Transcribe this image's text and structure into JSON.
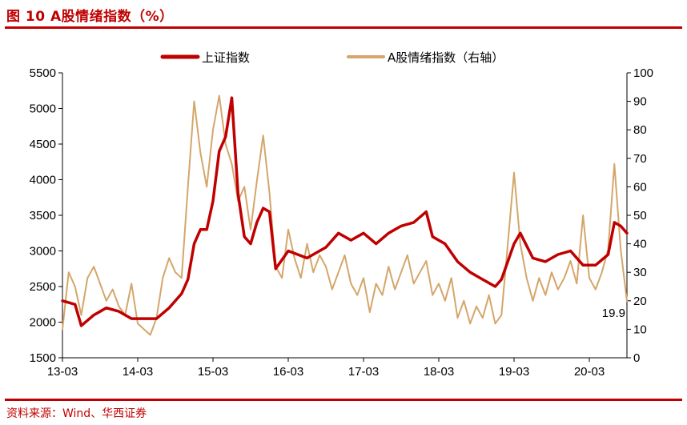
{
  "figure": {
    "title": "图 10  A股情绪指数（%）",
    "source": "资料来源：Wind、华西证券"
  },
  "colors": {
    "sse": "#c00000",
    "sentiment": "#d4a66a",
    "title": "#c00000",
    "axis": "#000000"
  },
  "chart_data": {
    "type": "line",
    "x_tick_labels": [
      "13-03",
      "14-03",
      "15-03",
      "16-03",
      "17-03",
      "18-03",
      "19-03",
      "20-03"
    ],
    "y_left_ticks": [
      1500,
      2000,
      2500,
      3000,
      3500,
      4000,
      4500,
      5000,
      5500
    ],
    "y_right_ticks": [
      0,
      10,
      20,
      30,
      40,
      50,
      60,
      70,
      80,
      90,
      100
    ],
    "ylim_left": [
      1500,
      5500
    ],
    "ylim_right": [
      0,
      100
    ],
    "legend_position": "top-center",
    "grid": false,
    "annotation": "19.9",
    "series": [
      {
        "name": "上证指数",
        "axis": "left",
        "points": [
          [
            "2013-03",
            2300
          ],
          [
            "2013-05",
            2250
          ],
          [
            "2013-06",
            1950
          ],
          [
            "2013-08",
            2100
          ],
          [
            "2013-10",
            2200
          ],
          [
            "2013-12",
            2150
          ],
          [
            "2014-02",
            2050
          ],
          [
            "2014-04",
            2050
          ],
          [
            "2014-06",
            2050
          ],
          [
            "2014-08",
            2200
          ],
          [
            "2014-10",
            2400
          ],
          [
            "2014-11",
            2600
          ],
          [
            "2014-12",
            3100
          ],
          [
            "2015-01",
            3300
          ],
          [
            "2015-02",
            3300
          ],
          [
            "2015-03",
            3700
          ],
          [
            "2015-04",
            4400
          ],
          [
            "2015-05",
            4600
          ],
          [
            "2015-06",
            5150
          ],
          [
            "2015-07",
            3800
          ],
          [
            "2015-08",
            3200
          ],
          [
            "2015-09",
            3100
          ],
          [
            "2015-10",
            3400
          ],
          [
            "2015-11",
            3600
          ],
          [
            "2015-12",
            3550
          ],
          [
            "2016-01",
            2750
          ],
          [
            "2016-03",
            3000
          ],
          [
            "2016-06",
            2900
          ],
          [
            "2016-09",
            3050
          ],
          [
            "2016-11",
            3250
          ],
          [
            "2017-01",
            3150
          ],
          [
            "2017-03",
            3250
          ],
          [
            "2017-05",
            3100
          ],
          [
            "2017-07",
            3250
          ],
          [
            "2017-09",
            3350
          ],
          [
            "2017-11",
            3400
          ],
          [
            "2018-01",
            3550
          ],
          [
            "2018-02",
            3200
          ],
          [
            "2018-04",
            3100
          ],
          [
            "2018-06",
            2850
          ],
          [
            "2018-08",
            2700
          ],
          [
            "2018-10",
            2600
          ],
          [
            "2018-12",
            2500
          ],
          [
            "2019-01",
            2600
          ],
          [
            "2019-03",
            3100
          ],
          [
            "2019-04",
            3250
          ],
          [
            "2019-06",
            2900
          ],
          [
            "2019-08",
            2850
          ],
          [
            "2019-10",
            2950
          ],
          [
            "2019-12",
            3000
          ],
          [
            "2020-02",
            2800
          ],
          [
            "2020-04",
            2800
          ],
          [
            "2020-06",
            2950
          ],
          [
            "2020-07",
            3400
          ],
          [
            "2020-08",
            3350
          ],
          [
            "2020-09",
            3250
          ]
        ]
      },
      {
        "name": "A股情绪指数（右轴）",
        "axis": "right",
        "points": [
          [
            "2013-03",
            10
          ],
          [
            "2013-04",
            30
          ],
          [
            "2013-05",
            25
          ],
          [
            "2013-06",
            15
          ],
          [
            "2013-07",
            28
          ],
          [
            "2013-08",
            32
          ],
          [
            "2013-09",
            26
          ],
          [
            "2013-10",
            20
          ],
          [
            "2013-11",
            24
          ],
          [
            "2013-12",
            18
          ],
          [
            "2014-01",
            15
          ],
          [
            "2014-02",
            26
          ],
          [
            "2014-03",
            12
          ],
          [
            "2014-04",
            10
          ],
          [
            "2014-05",
            8
          ],
          [
            "2014-06",
            14
          ],
          [
            "2014-07",
            28
          ],
          [
            "2014-08",
            35
          ],
          [
            "2014-09",
            30
          ],
          [
            "2014-10",
            28
          ],
          [
            "2014-11",
            60
          ],
          [
            "2014-12",
            90
          ],
          [
            "2015-01",
            72
          ],
          [
            "2015-02",
            60
          ],
          [
            "2015-03",
            80
          ],
          [
            "2015-04",
            92
          ],
          [
            "2015-05",
            75
          ],
          [
            "2015-06",
            68
          ],
          [
            "2015-07",
            55
          ],
          [
            "2015-08",
            60
          ],
          [
            "2015-09",
            45
          ],
          [
            "2015-10",
            62
          ],
          [
            "2015-11",
            78
          ],
          [
            "2015-12",
            58
          ],
          [
            "2016-01",
            32
          ],
          [
            "2016-02",
            28
          ],
          [
            "2016-03",
            45
          ],
          [
            "2016-04",
            35
          ],
          [
            "2016-05",
            28
          ],
          [
            "2016-06",
            40
          ],
          [
            "2016-07",
            30
          ],
          [
            "2016-08",
            36
          ],
          [
            "2016-09",
            32
          ],
          [
            "2016-10",
            24
          ],
          [
            "2016-11",
            30
          ],
          [
            "2016-12",
            36
          ],
          [
            "2017-01",
            26
          ],
          [
            "2017-02",
            22
          ],
          [
            "2017-03",
            28
          ],
          [
            "2017-04",
            16
          ],
          [
            "2017-05",
            26
          ],
          [
            "2017-06",
            22
          ],
          [
            "2017-07",
            32
          ],
          [
            "2017-08",
            24
          ],
          [
            "2017-09",
            30
          ],
          [
            "2017-10",
            36
          ],
          [
            "2017-11",
            26
          ],
          [
            "2017-12",
            30
          ],
          [
            "2018-01",
            34
          ],
          [
            "2018-02",
            22
          ],
          [
            "2018-03",
            26
          ],
          [
            "2018-04",
            20
          ],
          [
            "2018-05",
            28
          ],
          [
            "2018-06",
            14
          ],
          [
            "2018-07",
            20
          ],
          [
            "2018-08",
            12
          ],
          [
            "2018-09",
            18
          ],
          [
            "2018-10",
            14
          ],
          [
            "2018-11",
            22
          ],
          [
            "2018-12",
            12
          ],
          [
            "2019-01",
            15
          ],
          [
            "2019-02",
            40
          ],
          [
            "2019-03",
            65
          ],
          [
            "2019-04",
            40
          ],
          [
            "2019-05",
            28
          ],
          [
            "2019-06",
            20
          ],
          [
            "2019-07",
            28
          ],
          [
            "2019-08",
            22
          ],
          [
            "2019-09",
            30
          ],
          [
            "2019-10",
            24
          ],
          [
            "2019-11",
            28
          ],
          [
            "2019-12",
            34
          ],
          [
            "2020-01",
            26
          ],
          [
            "2020-02",
            50
          ],
          [
            "2020-03",
            28
          ],
          [
            "2020-04",
            24
          ],
          [
            "2020-05",
            30
          ],
          [
            "2020-06",
            38
          ],
          [
            "2020-07",
            68
          ],
          [
            "2020-08",
            38
          ],
          [
            "2020-09",
            19.9
          ]
        ]
      }
    ]
  }
}
